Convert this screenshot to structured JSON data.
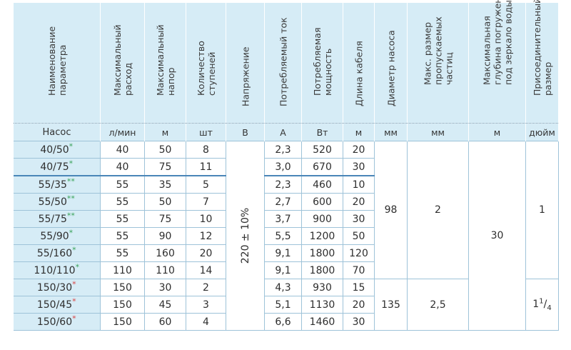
{
  "headers": [
    {
      "lines": [
        "Наименование",
        "параметра"
      ]
    },
    {
      "lines": [
        "Максимальный",
        "расход"
      ]
    },
    {
      "lines": [
        "Максимальный",
        "напор"
      ]
    },
    {
      "lines": [
        "Количество",
        "ступеней"
      ]
    },
    {
      "lines": [
        "Напряжение"
      ]
    },
    {
      "lines": [
        "Потребляемый ток"
      ]
    },
    {
      "lines": [
        "Потребляемая",
        "мощность"
      ]
    },
    {
      "lines": [
        "Длина кабеля"
      ]
    },
    {
      "lines": [
        "Диаметр насоса"
      ]
    },
    {
      "lines": [
        "Макс. размер",
        "пропускаемых",
        "частиц"
      ]
    },
    {
      "lines": [
        "Максимальная",
        "глубина погружения",
        "под зеркало воды"
      ]
    },
    {
      "lines": [
        "Присоединительный",
        "размер"
      ]
    }
  ],
  "units": [
    "Насос",
    "л/мин",
    "м",
    "шт",
    "В",
    "А",
    "Вт",
    "м",
    "мм",
    "мм",
    "м",
    "дюйм"
  ],
  "rows": [
    {
      "pump": "40/50",
      "mark": "*",
      "mark_color": "green",
      "flow": "40",
      "head": "50",
      "stages": "8",
      "current": "2,3",
      "power": "520",
      "cable": "20"
    },
    {
      "pump": "40/75",
      "mark": "*",
      "mark_color": "green",
      "flow": "40",
      "head": "75",
      "stages": "11",
      "current": "3,0",
      "power": "670",
      "cable": "30"
    },
    {
      "pump": "55/35",
      "mark": "**",
      "mark_color": "green",
      "flow": "55",
      "head": "35",
      "stages": "5",
      "current": "2,3",
      "power": "460",
      "cable": "10"
    },
    {
      "pump": "55/50",
      "mark": "**",
      "mark_color": "green",
      "flow": "55",
      "head": "50",
      "stages": "7",
      "current": "2,7",
      "power": "600",
      "cable": "20"
    },
    {
      "pump": "55/75",
      "mark": "**",
      "mark_color": "green",
      "flow": "55",
      "head": "75",
      "stages": "10",
      "current": "3,7",
      "power": "900",
      "cable": "30"
    },
    {
      "pump": "55/90",
      "mark": "*",
      "mark_color": "green",
      "flow": "55",
      "head": "90",
      "stages": "12",
      "current": "5,5",
      "power": "1200",
      "cable": "50"
    },
    {
      "pump": "55/160",
      "mark": "*",
      "mark_color": "green",
      "flow": "55",
      "head": "160",
      "stages": "20",
      "current": "9,1",
      "power": "1800",
      "cable": "120"
    },
    {
      "pump": "110/110",
      "mark": "*",
      "mark_color": "green",
      "flow": "110",
      "head": "110",
      "stages": "14",
      "current": "9,1",
      "power": "1800",
      "cable": "70"
    },
    {
      "pump": "150/30",
      "mark": "*",
      "mark_color": "red",
      "flow": "150",
      "head": "30",
      "stages": "2",
      "current": "4,3",
      "power": "930",
      "cable": "15"
    },
    {
      "pump": "150/45",
      "mark": "*",
      "mark_color": "red",
      "flow": "150",
      "head": "45",
      "stages": "3",
      "current": "5,1",
      "power": "1130",
      "cable": "20"
    },
    {
      "pump": "150/60",
      "mark": "*",
      "mark_color": "red",
      "flow": "150",
      "head": "60",
      "stages": "4",
      "current": "6,6",
      "power": "1460",
      "cable": "30"
    }
  ],
  "merged": {
    "voltage": "220 ± 10%",
    "diameter_a": "98",
    "diameter_b": "135",
    "particles_a": "2",
    "particles_b": "2,5",
    "depth": "30",
    "connection_a": "1",
    "connection_b_whole": "1",
    "connection_b_num": "1",
    "connection_b_den": "4"
  },
  "colors": {
    "header_bg": "#d6ecf6",
    "border": "#9ec3d9",
    "group_line": "#4a86b8",
    "mark_green": "#3aa35a",
    "mark_red": "#d94545"
  }
}
